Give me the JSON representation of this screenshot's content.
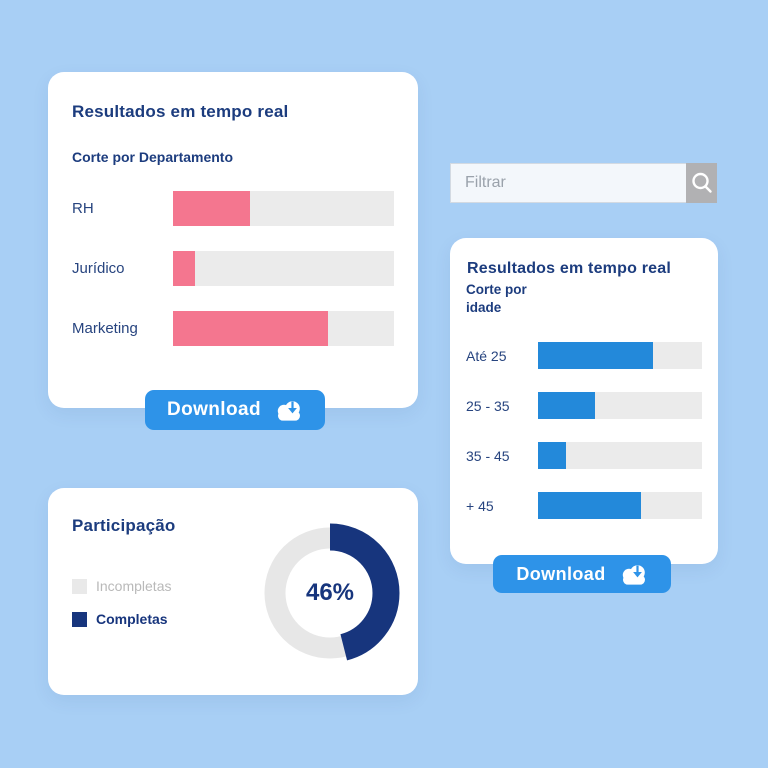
{
  "page": {
    "background_color": "#a8cff5",
    "card_color": "#ffffff",
    "navy": "#1c3c7e"
  },
  "search": {
    "placeholder": "Filtrar",
    "value": "",
    "icon": "search-icon",
    "button_color": "#b1b1b3"
  },
  "cards": {
    "department": {
      "title": "Resultados em tempo real",
      "subtitle": "Corte por Departamento",
      "download_label": "Download",
      "bar_color": "#f4768f",
      "track_color": "#ebebeb",
      "rows": [
        {
          "label": "RH",
          "value": 35
        },
        {
          "label": "Jurídico",
          "value": 10
        },
        {
          "label": "Marketing",
          "value": 70
        }
      ]
    },
    "age": {
      "title": "Resultados em tempo real",
      "subtitle_line1": "Corte por",
      "subtitle_line2": "idade",
      "download_label": "Download",
      "bar_color": "#2389da",
      "track_color": "#ebebeb",
      "rows": [
        {
          "label": "Até 25",
          "value": 70
        },
        {
          "label": "25 - 35",
          "value": 35
        },
        {
          "label": "35 - 45",
          "value": 17
        },
        {
          "label": "+ 45",
          "value": 63
        }
      ]
    },
    "participation": {
      "title": "Participação",
      "percent": 46,
      "percent_label": "46%",
      "fill_color": "#17357d",
      "rest_color": "#e7e7e7",
      "legend": [
        {
          "label": "Incompletas",
          "color": "#e9e9e9"
        },
        {
          "label": "Completas",
          "color": "#17357d"
        }
      ]
    }
  },
  "chart_data": [
    {
      "type": "bar",
      "orientation": "horizontal",
      "title": "Resultados em tempo real — Corte por Departamento",
      "categories": [
        "RH",
        "Jurídico",
        "Marketing"
      ],
      "values": [
        35,
        10,
        70
      ],
      "unit": "percent_of_track",
      "bar_color": "#f4768f",
      "xlim": [
        0,
        100
      ],
      "grid": false,
      "legend": "none"
    },
    {
      "type": "bar",
      "orientation": "horizontal",
      "title": "Resultados em tempo real — Corte por idade",
      "categories": [
        "Até 25",
        "25 - 35",
        "35 - 45",
        "+ 45"
      ],
      "values": [
        70,
        35,
        17,
        63
      ],
      "unit": "percent_of_track",
      "bar_color": "#2389da",
      "xlim": [
        0,
        100
      ],
      "grid": false,
      "legend": "none"
    },
    {
      "type": "pie",
      "subtype": "donut",
      "title": "Participação",
      "categories": [
        "Completas",
        "Incompletas"
      ],
      "values": [
        46,
        54
      ],
      "colors": [
        "#17357d",
        "#e7e7e7"
      ],
      "center_label": "46%",
      "start_angle": "top",
      "direction": "clockwise",
      "legend_position": "left"
    }
  ]
}
